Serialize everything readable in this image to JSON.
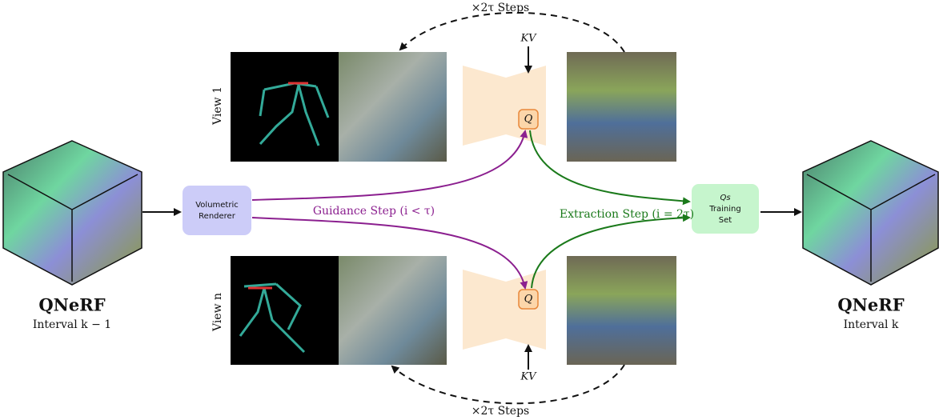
{
  "top": {
    "steps": "×2τ Steps",
    "kv": "KV",
    "view": "View 1",
    "q": "Q"
  },
  "bottom": {
    "steps": "×2τ Steps",
    "kv": "KV",
    "view": "View n",
    "q": "Q"
  },
  "renderer": [
    "Volumetric",
    "Renderer"
  ],
  "guidance": "Guidance Step (i < τ)",
  "extraction": "Extraction Step (i = 2τ)",
  "training_set": [
    "Qs",
    "Training",
    "Set"
  ],
  "left": {
    "title": "QNeRF",
    "subtitle": "Interval k − 1"
  },
  "right": {
    "title": "QNeRF",
    "subtitle": "Interval k"
  }
}
